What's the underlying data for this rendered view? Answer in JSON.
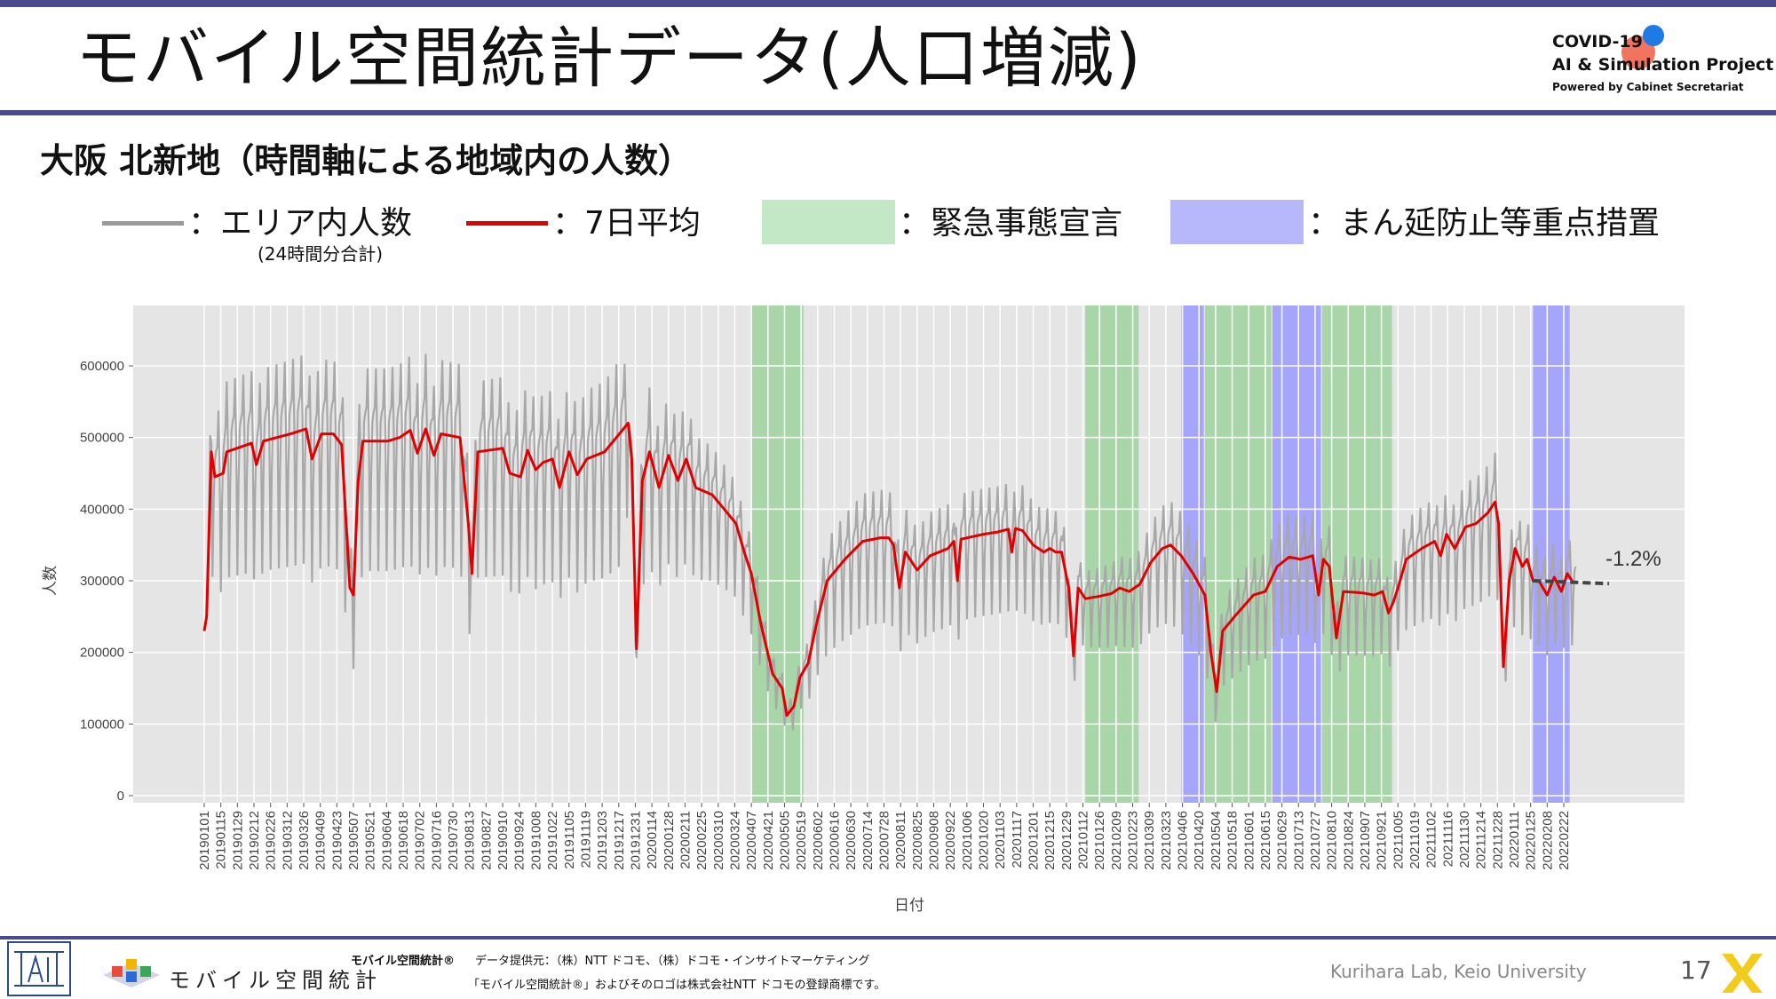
{
  "slide": {
    "title": "モバイル空間統計データ(人口増減)",
    "subtitle": "大阪 北新地（時間軸による地域内の人数）",
    "page_number": "17"
  },
  "logo": {
    "line1": "COVID-19",
    "line2": "AI & Simulation Project",
    "line3": "Powered by Cabinet Secretariat"
  },
  "legend": {
    "gray_label": "：エリア内人数",
    "gray_note": "(24時間分合計)",
    "red_label": "：7日平均",
    "green_label": "：緊急事態宣言",
    "blue_label": "：まん延防止等重点措置"
  },
  "footer": {
    "brand": "モバイル空間統計",
    "bold": "モバイル空間統計®",
    "provider": "データ提供元：（株）NTT ドコモ、（株）ドコモ・インサイトマーケティング",
    "trademark": "「モバイル空間統計®」およびそのロゴは株式会社NTT ドコモの登録商標です。",
    "lab": "Kurihara Lab, Keio University"
  },
  "chart_data": {
    "type": "line",
    "xlabel": "日付",
    "ylabel": "人数",
    "ylim": [
      0,
      650000
    ],
    "yticks": [
      0,
      100000,
      200000,
      300000,
      400000,
      500000,
      600000
    ],
    "ytick_labels": [
      "0",
      "100000",
      "200000",
      "300000",
      "400000",
      "500000",
      "600000"
    ],
    "x_start": "2019-01-01",
    "x_end": "2022-03-06",
    "xtick_labels": [
      "20190101",
      "20190115",
      "20190129",
      "20190212",
      "20190226",
      "20190312",
      "20190326",
      "20190409",
      "20190423",
      "20190507",
      "20190521",
      "20190604",
      "20190618",
      "20190702",
      "20190716",
      "20190730",
      "20190813",
      "20190827",
      "20190910",
      "20190924",
      "20191008",
      "20191022",
      "20191105",
      "20191119",
      "20191203",
      "20191217",
      "20191231",
      "20200114",
      "20200128",
      "20200211",
      "20200225",
      "20200310",
      "20200324",
      "20200407",
      "20200421",
      "20200505",
      "20200519",
      "20200602",
      "20200616",
      "20200630",
      "20200714",
      "20200728",
      "20200811",
      "20200825",
      "20200908",
      "20200922",
      "20201006",
      "20201020",
      "20201103",
      "20201117",
      "20201201",
      "20201215",
      "20201229",
      "20210112",
      "20210126",
      "20210209",
      "20210223",
      "20210309",
      "20210323",
      "20210406",
      "20210420",
      "20210504",
      "20210518",
      "20210601",
      "20210615",
      "20210629",
      "20210713",
      "20210727",
      "20210810",
      "20210824",
      "20210907",
      "20210921",
      "20211005",
      "20211019",
      "20211102",
      "20211116",
      "20211130",
      "20211214",
      "20211228",
      "20220111",
      "20220125",
      "20220208",
      "20220222"
    ],
    "grid": true,
    "annotation": {
      "text": "-1.2%",
      "y": 296000
    },
    "shaded_periods": [
      {
        "kind": "緊急事態宣言",
        "color": "#9fd49f",
        "start": "2020-04-07",
        "end": "2020-05-21"
      },
      {
        "kind": "緊急事態宣言",
        "color": "#9fd49f",
        "start": "2021-01-14",
        "end": "2021-02-28"
      },
      {
        "kind": "まん延防止等重点措置",
        "color": "#9a9aff",
        "start": "2021-04-05",
        "end": "2021-04-24"
      },
      {
        "kind": "緊急事態宣言",
        "color": "#9fd49f",
        "start": "2021-04-25",
        "end": "2021-06-20"
      },
      {
        "kind": "まん延防止等重点措置",
        "color": "#9a9aff",
        "start": "2021-06-21",
        "end": "2021-08-01"
      },
      {
        "kind": "緊急事態宣言",
        "color": "#9fd49f",
        "start": "2021-08-02",
        "end": "2021-09-30"
      },
      {
        "kind": "まん延防止等重点措置",
        "color": "#9a9aff",
        "start": "2022-01-27",
        "end": "2022-02-27"
      }
    ],
    "series": [
      {
        "name": "エリア内人数",
        "color": "#a8a8a8",
        "style": "daily",
        "daily_amplitude": [
          [
            "2019-01-01",
            0.0
          ],
          [
            "2019-01-05",
            0.25
          ],
          [
            "2019-01-15",
            0.27
          ],
          [
            "2019-12-20",
            0.27
          ],
          [
            "2019-12-28",
            0.1
          ],
          [
            "2020-01-06",
            0.25
          ],
          [
            "2020-03-20",
            0.2
          ],
          [
            "2020-04-07",
            0.2
          ],
          [
            "2020-05-10",
            0.18
          ],
          [
            "2020-06-10",
            0.25
          ],
          [
            "2020-12-20",
            0.22
          ],
          [
            "2021-01-14",
            0.18
          ],
          [
            "2021-04-25",
            0.25
          ],
          [
            "2021-10-10",
            0.22
          ],
          [
            "2021-12-20",
            0.22
          ],
          [
            "2022-03-06",
            0.22
          ]
        ]
      },
      {
        "name": "7日平均",
        "color": "#e00000",
        "style": "line",
        "points": [
          [
            "2019-01-01",
            230000
          ],
          [
            "2019-01-03",
            250000
          ],
          [
            "2019-01-07",
            480000
          ],
          [
            "2019-01-10",
            445000
          ],
          [
            "2019-01-17",
            450000
          ],
          [
            "2019-01-20",
            480000
          ],
          [
            "2019-02-10",
            492000
          ],
          [
            "2019-02-14",
            462000
          ],
          [
            "2019-02-20",
            495000
          ],
          [
            "2019-03-15",
            505000
          ],
          [
            "2019-03-28",
            512000
          ],
          [
            "2019-04-02",
            470000
          ],
          [
            "2019-04-10",
            505000
          ],
          [
            "2019-04-20",
            505000
          ],
          [
            "2019-04-27",
            490000
          ],
          [
            "2019-05-04",
            290000
          ],
          [
            "2019-05-07",
            280000
          ],
          [
            "2019-05-11",
            440000
          ],
          [
            "2019-05-15",
            495000
          ],
          [
            "2019-06-05",
            495000
          ],
          [
            "2019-06-15",
            500000
          ],
          [
            "2019-06-24",
            510000
          ],
          [
            "2019-06-30",
            478000
          ],
          [
            "2019-07-07",
            512000
          ],
          [
            "2019-07-14",
            475000
          ],
          [
            "2019-07-20",
            505000
          ],
          [
            "2019-08-05",
            500000
          ],
          [
            "2019-08-12",
            380000
          ],
          [
            "2019-08-15",
            310000
          ],
          [
            "2019-08-20",
            480000
          ],
          [
            "2019-09-10",
            485000
          ],
          [
            "2019-09-16",
            450000
          ],
          [
            "2019-09-25",
            445000
          ],
          [
            "2019-10-01",
            482000
          ],
          [
            "2019-10-08",
            455000
          ],
          [
            "2019-10-14",
            465000
          ],
          [
            "2019-10-22",
            470000
          ],
          [
            "2019-10-28",
            430000
          ],
          [
            "2019-11-05",
            480000
          ],
          [
            "2019-11-12",
            448000
          ],
          [
            "2019-11-20",
            470000
          ],
          [
            "2019-12-05",
            480000
          ],
          [
            "2019-12-20",
            510000
          ],
          [
            "2019-12-25",
            520000
          ],
          [
            "2019-12-28",
            470000
          ],
          [
            "2020-01-01",
            205000
          ],
          [
            "2020-01-06",
            440000
          ],
          [
            "2020-01-12",
            480000
          ],
          [
            "2020-01-20",
            430000
          ],
          [
            "2020-01-28",
            475000
          ],
          [
            "2020-02-05",
            440000
          ],
          [
            "2020-02-12",
            470000
          ],
          [
            "2020-02-20",
            430000
          ],
          [
            "2020-03-05",
            420000
          ],
          [
            "2020-03-15",
            400000
          ],
          [
            "2020-03-25",
            380000
          ],
          [
            "2020-04-01",
            340000
          ],
          [
            "2020-04-07",
            310000
          ],
          [
            "2020-04-15",
            240000
          ],
          [
            "2020-04-25",
            170000
          ],
          [
            "2020-05-03",
            150000
          ],
          [
            "2020-05-07",
            112000
          ],
          [
            "2020-05-13",
            125000
          ],
          [
            "2020-05-18",
            165000
          ],
          [
            "2020-05-25",
            185000
          ],
          [
            "2020-06-01",
            240000
          ],
          [
            "2020-06-10",
            300000
          ],
          [
            "2020-06-25",
            330000
          ],
          [
            "2020-07-10",
            355000
          ],
          [
            "2020-07-25",
            360000
          ],
          [
            "2020-08-01",
            360000
          ],
          [
            "2020-08-05",
            350000
          ],
          [
            "2020-08-10",
            290000
          ],
          [
            "2020-08-15",
            340000
          ],
          [
            "2020-08-25",
            315000
          ],
          [
            "2020-09-05",
            335000
          ],
          [
            "2020-09-20",
            345000
          ],
          [
            "2020-09-25",
            355000
          ],
          [
            "2020-09-28",
            300000
          ],
          [
            "2020-10-01",
            358000
          ],
          [
            "2020-10-20",
            365000
          ],
          [
            "2020-11-01",
            368000
          ],
          [
            "2020-11-10",
            372000
          ],
          [
            "2020-11-13",
            340000
          ],
          [
            "2020-11-16",
            373000
          ],
          [
            "2020-11-22",
            370000
          ],
          [
            "2020-12-01",
            350000
          ],
          [
            "2020-12-10",
            340000
          ],
          [
            "2020-12-15",
            345000
          ],
          [
            "2020-12-20",
            340000
          ],
          [
            "2020-12-25",
            340000
          ],
          [
            "2020-12-31",
            290000
          ],
          [
            "2021-01-04",
            195000
          ],
          [
            "2021-01-08",
            290000
          ],
          [
            "2021-01-14",
            275000
          ],
          [
            "2021-01-25",
            278000
          ],
          [
            "2021-02-05",
            282000
          ],
          [
            "2021-02-12",
            290000
          ],
          [
            "2021-02-20",
            285000
          ],
          [
            "2021-03-01",
            295000
          ],
          [
            "2021-03-10",
            325000
          ],
          [
            "2021-03-20",
            345000
          ],
          [
            "2021-03-27",
            350000
          ],
          [
            "2021-04-05",
            335000
          ],
          [
            "2021-04-15",
            310000
          ],
          [
            "2021-04-25",
            280000
          ],
          [
            "2021-04-30",
            200000
          ],
          [
            "2021-05-05",
            145000
          ],
          [
            "2021-05-10",
            230000
          ],
          [
            "2021-05-20",
            250000
          ],
          [
            "2021-06-05",
            280000
          ],
          [
            "2021-06-15",
            285000
          ],
          [
            "2021-06-25",
            320000
          ],
          [
            "2021-07-05",
            333000
          ],
          [
            "2021-07-15",
            330000
          ],
          [
            "2021-07-25",
            335000
          ],
          [
            "2021-07-30",
            280000
          ],
          [
            "2021-08-03",
            330000
          ],
          [
            "2021-08-08",
            320000
          ],
          [
            "2021-08-14",
            220000
          ],
          [
            "2021-08-20",
            285000
          ],
          [
            "2021-09-05",
            283000
          ],
          [
            "2021-09-15",
            280000
          ],
          [
            "2021-09-22",
            285000
          ],
          [
            "2021-09-27",
            255000
          ],
          [
            "2021-10-01",
            270000
          ],
          [
            "2021-10-05",
            290000
          ],
          [
            "2021-10-12",
            330000
          ],
          [
            "2021-10-25",
            345000
          ],
          [
            "2021-11-05",
            355000
          ],
          [
            "2021-11-10",
            335000
          ],
          [
            "2021-11-15",
            365000
          ],
          [
            "2021-11-22",
            345000
          ],
          [
            "2021-12-01",
            375000
          ],
          [
            "2021-12-10",
            380000
          ],
          [
            "2021-12-20",
            395000
          ],
          [
            "2021-12-26",
            410000
          ],
          [
            "2021-12-29",
            380000
          ],
          [
            "2022-01-02",
            180000
          ],
          [
            "2022-01-07",
            300000
          ],
          [
            "2022-01-12",
            345000
          ],
          [
            "2022-01-18",
            320000
          ],
          [
            "2022-01-22",
            330000
          ],
          [
            "2022-01-27",
            300000
          ],
          [
            "2022-02-01",
            300000
          ],
          [
            "2022-02-08",
            280000
          ],
          [
            "2022-02-14",
            305000
          ],
          [
            "2022-02-20",
            285000
          ],
          [
            "2022-02-25",
            310000
          ],
          [
            "2022-03-01",
            300000
          ]
        ]
      },
      {
        "name": "trend",
        "color": "#444444",
        "style": "dashed",
        "points": [
          [
            "2022-01-27",
            300000
          ],
          [
            "2022-03-06",
            296000
          ]
        ]
      }
    ]
  }
}
